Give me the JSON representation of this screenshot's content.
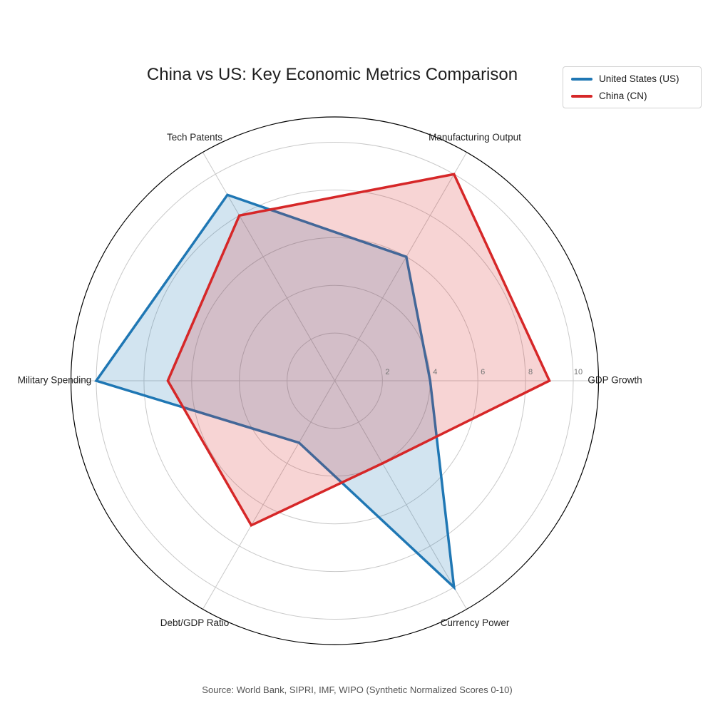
{
  "chart_data": {
    "type": "radar",
    "title": "China vs US: Key Economic Metrics Comparison",
    "categories": [
      "GDP Growth",
      "Manufacturing Output",
      "Tech Patents",
      "Military Spending",
      "Debt/GDP Ratio",
      "Currency Power"
    ],
    "series": [
      {
        "name": "United States (US)",
        "color": "#1f77b4",
        "values": [
          4,
          6,
          9,
          10,
          3,
          10
        ]
      },
      {
        "name": "China (CN)",
        "color": "#d62728",
        "values": [
          9,
          10,
          8,
          7,
          7,
          4
        ]
      }
    ],
    "radial_ticks": [
      2,
      4,
      6,
      8,
      10
    ],
    "value_range": [
      0,
      10
    ],
    "grid": true,
    "legend_position": "top-right",
    "fill_opacity": 0.2,
    "grid_color": "#c9c9c9",
    "outer_ring_color": "#000000",
    "tick_label_color": "#757575",
    "axis_label_color": "#1f1f1f",
    "source": "Source: World Bank, SIPRI, IMF, WIPO (Synthetic Normalized Scores 0-10)"
  }
}
